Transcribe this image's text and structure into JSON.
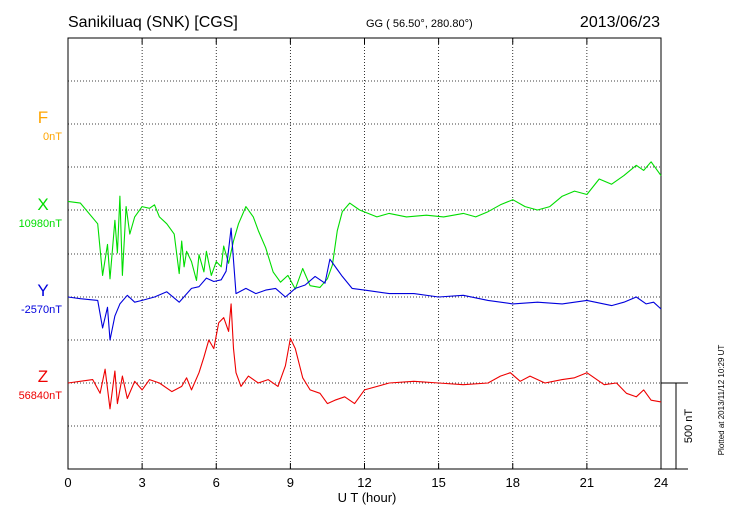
{
  "header": {
    "station": "Sanikiluaq (SNK)  [CGS]",
    "coords": "GG ( 56.50°, 280.80°)",
    "date": "2013/06/23"
  },
  "side_note": "Plotted at 2013/11/12 10:29 UT",
  "scale_bar_label": "500 nT",
  "chart_data": {
    "type": "line",
    "xlabel": "U T (hour)",
    "xlim": [
      0,
      24
    ],
    "xticks": [
      0,
      3,
      6,
      9,
      12,
      15,
      18,
      21,
      24
    ],
    "scale_bar_nT": 500,
    "grid": true,
    "colors": {
      "F": "#ffa500",
      "X": "#00dd00",
      "Y": "#0000dd",
      "Z": "#ee0000"
    },
    "series": [
      {
        "name": "F",
        "baseline_label": "0nT",
        "x": [],
        "values": []
      },
      {
        "name": "X",
        "baseline_label": "10980nT",
        "x": [
          0,
          0.5,
          1.2,
          1.4,
          1.6,
          1.7,
          1.9,
          2.0,
          2.1,
          2.2,
          2.35,
          2.5,
          2.7,
          3.0,
          3.3,
          3.5,
          3.7,
          4.0,
          4.3,
          4.5,
          4.6,
          4.7,
          4.8,
          5.0,
          5.2,
          5.3,
          5.5,
          5.6,
          5.8,
          6.0,
          6.2,
          6.3,
          6.5,
          6.7,
          6.9,
          7.2,
          7.5,
          7.7,
          8.0,
          8.3,
          8.6,
          8.9,
          9.2,
          9.5,
          9.8,
          10.2,
          10.5,
          10.7,
          10.9,
          11.1,
          11.4,
          11.8,
          12.5,
          13.0,
          13.7,
          14.5,
          15.2,
          16.0,
          16.5,
          17.0,
          17.5,
          18.0,
          18.5,
          19.0,
          19.5,
          20.0,
          20.5,
          21.0,
          21.5,
          22.0,
          22.5,
          23.0,
          23.3,
          23.6,
          24.0
        ],
        "values": [
          50,
          40,
          -80,
          -380,
          -200,
          -400,
          -60,
          -250,
          80,
          -380,
          20,
          -140,
          -40,
          20,
          10,
          30,
          -40,
          -80,
          -140,
          -370,
          -180,
          -330,
          -240,
          -300,
          -410,
          -260,
          -360,
          -240,
          -380,
          -300,
          -330,
          -210,
          -310,
          -180,
          -80,
          20,
          -40,
          -120,
          -220,
          -360,
          -420,
          -380,
          -460,
          -340,
          -440,
          -450,
          -400,
          -320,
          -120,
          -10,
          40,
          0,
          -40,
          -20,
          -40,
          -30,
          -40,
          -20,
          -40,
          -10,
          30,
          60,
          20,
          0,
          20,
          80,
          110,
          90,
          180,
          150,
          200,
          260,
          230,
          280,
          200
        ]
      },
      {
        "name": "Y",
        "baseline_label": "-2570nT",
        "x": [
          0,
          0.5,
          1.2,
          1.4,
          1.6,
          1.7,
          1.9,
          2.1,
          2.4,
          2.7,
          3.0,
          3.5,
          4.0,
          4.5,
          5.0,
          5.3,
          5.6,
          5.9,
          6.2,
          6.4,
          6.6,
          6.8,
          7.2,
          7.6,
          8.0,
          8.4,
          8.8,
          9.2,
          9.6,
          10.0,
          10.4,
          10.6,
          10.9,
          11.1,
          11.5,
          12.0,
          13.0,
          14.0,
          15.0,
          16.0,
          17.0,
          18.0,
          19.0,
          20.0,
          21.0,
          22.0,
          22.5,
          23.0,
          23.4,
          23.7,
          24.0
        ],
        "values": [
          0,
          -10,
          -20,
          -180,
          -60,
          -250,
          -110,
          -40,
          10,
          -30,
          -20,
          0,
          30,
          -30,
          50,
          60,
          110,
          90,
          100,
          150,
          400,
          20,
          50,
          20,
          40,
          50,
          0,
          50,
          70,
          120,
          80,
          220,
          160,
          120,
          50,
          40,
          20,
          20,
          0,
          10,
          -20,
          -40,
          -30,
          -40,
          -20,
          -50,
          -30,
          0,
          -40,
          -30,
          -70
        ]
      },
      {
        "name": "Z",
        "baseline_label": "56840nT",
        "x": [
          0,
          1.0,
          1.3,
          1.5,
          1.7,
          1.9,
          2.0,
          2.2,
          2.4,
          2.7,
          3.0,
          3.3,
          3.7,
          4.2,
          4.6,
          4.8,
          5.0,
          5.3,
          5.5,
          5.7,
          5.9,
          6.1,
          6.3,
          6.5,
          6.6,
          6.7,
          6.8,
          7.0,
          7.3,
          7.7,
          8.1,
          8.5,
          8.8,
          9.0,
          9.2,
          9.5,
          9.8,
          10.2,
          10.5,
          10.8,
          11.2,
          11.6,
          12.0,
          13.0,
          14.0,
          15.0,
          16.0,
          17.0,
          17.5,
          17.9,
          18.3,
          18.7,
          19.3,
          20.0,
          20.5,
          21.0,
          21.4,
          21.7,
          22.2,
          22.6,
          23.0,
          23.3,
          23.6,
          24.0
        ],
        "values": [
          0,
          20,
          -60,
          80,
          -150,
          70,
          -120,
          40,
          -90,
          10,
          -40,
          20,
          0,
          -50,
          -20,
          30,
          -40,
          60,
          150,
          250,
          200,
          350,
          380,
          300,
          460,
          200,
          60,
          -20,
          40,
          0,
          20,
          -20,
          100,
          260,
          200,
          30,
          -40,
          -60,
          -120,
          -100,
          -80,
          -120,
          -40,
          0,
          10,
          0,
          -10,
          0,
          40,
          60,
          10,
          40,
          0,
          20,
          30,
          60,
          20,
          -10,
          0,
          -60,
          -80,
          -40,
          -100,
          -110
        ]
      }
    ]
  }
}
